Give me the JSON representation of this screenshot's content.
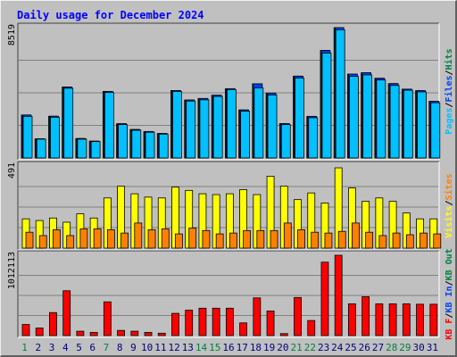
{
  "chart_data": {
    "type": "bar",
    "title": "Daily usage for December 2024",
    "categories": [
      "1",
      "2",
      "3",
      "4",
      "5",
      "6",
      "7",
      "8",
      "9",
      "10",
      "11",
      "12",
      "13",
      "14",
      "15",
      "16",
      "17",
      "18",
      "19",
      "20",
      "21",
      "22",
      "23",
      "24",
      "25",
      "26",
      "27",
      "28",
      "29",
      "30",
      "31"
    ],
    "weekend_days": [
      "1",
      "7",
      "14",
      "15",
      "21",
      "22",
      "28",
      "29"
    ],
    "panels": [
      {
        "id": "hits-files-pages",
        "ymax_label": "8519",
        "ymax": 8519,
        "right_labels": [
          {
            "text": "Pages",
            "color": "#00c0ff"
          },
          {
            "text": "/",
            "color": "#000000"
          },
          {
            "text": "Files",
            "color": "#0040ff"
          },
          {
            "text": "/",
            "color": "#000000"
          },
          {
            "text": "Hits",
            "color": "#008040"
          }
        ],
        "series": [
          {
            "name": "Hits",
            "color": "#00805c",
            "values": [
              2810,
              1250,
              2730,
              4640,
              1270,
              1100,
              4350,
              2240,
              1860,
              1730,
              1600,
              4410,
              3790,
              3890,
              4100,
              4530,
              3140,
              4850,
              4240,
              2250,
              5350,
              2720,
              7030,
              8519,
              5480,
              5570,
              5210,
              4860,
              4500,
              4400,
              3710
            ]
          },
          {
            "name": "Files",
            "color": "#0040ff",
            "values": [
              2810,
              1250,
              2730,
              4640,
              1270,
              1100,
              4350,
              2240,
              1860,
              1730,
              1600,
              4410,
              3790,
              3890,
              4100,
              4530,
              3140,
              4850,
              4240,
              2250,
              5350,
              2720,
              7030,
              8519,
              5480,
              5570,
              5210,
              4860,
              4500,
              4400,
              3710
            ]
          },
          {
            "name": "Pages",
            "color": "#00c0ff",
            "values": [
              2720,
              1230,
              2660,
              4560,
              1230,
              1070,
              4280,
              2180,
              1810,
              1680,
              1560,
              4350,
              3720,
              3800,
              4020,
              4470,
              3060,
              4580,
              4120,
              2180,
              5230,
              2630,
              6860,
              8380,
              5330,
              5430,
              5100,
              4740,
              4430,
              4320,
              3610
            ]
          }
        ]
      },
      {
        "id": "visits-sites",
        "ymax_label": "491",
        "ymax": 491,
        "right_labels": [
          {
            "text": "Visits",
            "color": "#ffff00"
          },
          {
            "text": "/",
            "color": "#000000"
          },
          {
            "text": "Sites",
            "color": "#ff8000"
          }
        ],
        "series": [
          {
            "name": "Visits",
            "color": "#ffff00",
            "values": [
              175,
              165,
              180,
              155,
              205,
              180,
              300,
              370,
              325,
              305,
              300,
              365,
              345,
              325,
              320,
              325,
              350,
              320,
              430,
              370,
              290,
              330,
              270,
              480,
              360,
              280,
              300,
              280,
              210,
              175,
              175
            ]
          },
          {
            "name": "Sites",
            "color": "#ff8000",
            "values": [
              95,
              75,
              110,
              75,
              115,
              115,
              110,
              90,
              150,
              110,
              115,
              85,
              120,
              105,
              85,
              90,
              105,
              105,
              105,
              150,
              110,
              95,
              90,
              100,
              150,
              95,
              75,
              90,
              80,
              90,
              85
            ]
          }
        ]
      },
      {
        "id": "kbytes",
        "ymax_label": "1012113",
        "ymax": 1012113,
        "right_labels": [
          {
            "text": "KB F",
            "color": "#ff0000"
          },
          {
            "text": "/",
            "color": "#000000"
          },
          {
            "text": "KB In",
            "color": "#0040ff"
          },
          {
            "text": "/",
            "color": "#000000"
          },
          {
            "text": "KB Out",
            "color": "#008040"
          }
        ],
        "series": [
          {
            "name": "KB F",
            "color": "#ff0000",
            "values": [
              140000,
              95000,
              290000,
              565000,
              55000,
              40000,
              425000,
              65000,
              55000,
              40000,
              30000,
              280000,
              320000,
              345000,
              345000,
              345000,
              160000,
              475000,
              310000,
              25000,
              480000,
              190000,
              925000,
              1012113,
              400000,
              490000,
              400000,
              400000,
              400000,
              395000,
              395000
            ]
          }
        ]
      }
    ]
  }
}
